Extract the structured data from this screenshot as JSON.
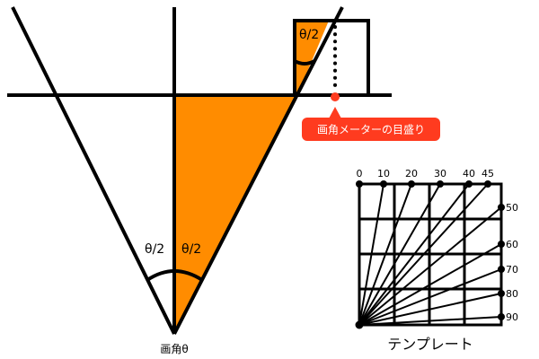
{
  "colors": {
    "fill": "#ff8c00",
    "stroke": "#000000",
    "callout_bg": "#ff3b1f",
    "callout_text": "#ffffff",
    "marker": "#ff3b1f"
  },
  "fov": {
    "half_angle_left": "θ/2",
    "half_angle_right": "θ/2",
    "half_angle_small": "θ/2",
    "vertex_label": "画角θ"
  },
  "callout": {
    "text": "画角メーターの目盛り"
  },
  "template": {
    "title": "テンプレート",
    "top_ticks": [
      "0",
      "10",
      "20",
      "30",
      "40",
      "45"
    ],
    "right_ticks": [
      "50",
      "60",
      "70",
      "80",
      "90"
    ]
  }
}
